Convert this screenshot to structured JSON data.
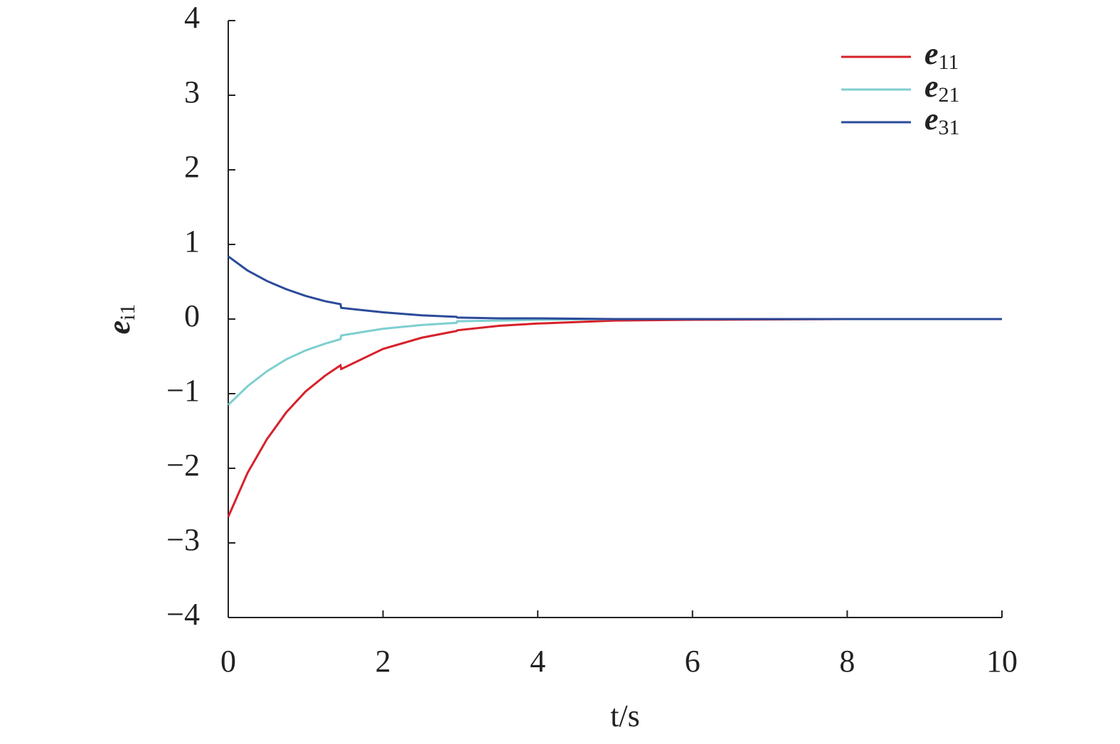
{
  "chart_data": {
    "type": "line",
    "x_label": "t/s",
    "y_label": "ei1",
    "x": [
      0,
      0.25,
      0.5,
      0.75,
      1.0,
      1.25,
      1.45,
      1.46,
      2,
      2.5,
      2.95,
      2.96,
      3.5,
      4,
      5,
      6,
      8,
      10
    ],
    "series": [
      {
        "name": "e11",
        "color": "#d7212a",
        "values": [
          -2.65,
          -2.06,
          -1.61,
          -1.25,
          -0.97,
          -0.76,
          -0.62,
          -0.67,
          -0.4,
          -0.25,
          -0.16,
          -0.15,
          -0.09,
          -0.06,
          -0.02,
          -0.01,
          0,
          0
        ]
      },
      {
        "name": "e21",
        "color": "#7ecfcf",
        "values": [
          -1.15,
          -0.9,
          -0.7,
          -0.54,
          -0.42,
          -0.33,
          -0.27,
          -0.22,
          -0.13,
          -0.08,
          -0.05,
          -0.03,
          -0.02,
          -0.01,
          0,
          0,
          0,
          0
        ]
      },
      {
        "name": "e31",
        "color": "#2b4a9a",
        "values": [
          0.84,
          0.65,
          0.51,
          0.4,
          0.31,
          0.24,
          0.2,
          0.15,
          0.09,
          0.05,
          0.03,
          0.02,
          0.01,
          0.01,
          0,
          0,
          0,
          0
        ]
      }
    ],
    "xlim": [
      0,
      10
    ],
    "xticks": [
      0,
      2,
      4,
      6,
      8,
      10
    ],
    "ylim": [
      -4,
      4
    ],
    "yticks": [
      {
        "value": -4,
        "label": "−4"
      },
      {
        "value": -3,
        "label": "−3"
      },
      {
        "value": -2,
        "label": "−2"
      },
      {
        "value": -1,
        "label": "−1"
      },
      0,
      1,
      2,
      3,
      4
    ],
    "grid": false,
    "legend": "upper right"
  }
}
